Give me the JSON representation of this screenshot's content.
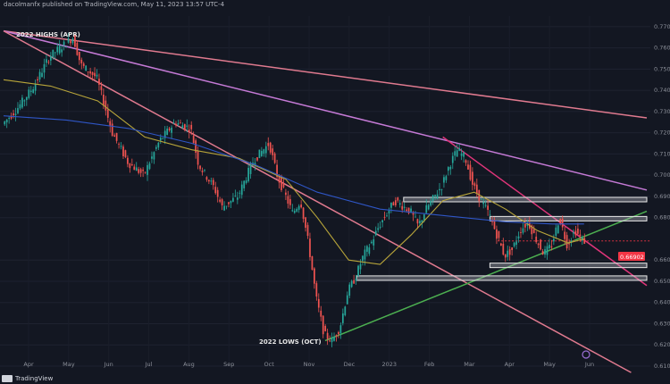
{
  "header_text": "dacolmanfx published on TradingView.com, May 11, 2023 13:57 UTC-4",
  "footer_brand": "TradingView",
  "colors": {
    "background": "#131722",
    "up": "#26a69a",
    "down": "#ef5350",
    "ma_fast": "#b8a53a",
    "ma_slow": "#2f56c6",
    "trend_pink": "#e07a8f",
    "trend_violet": "#c57ad6",
    "trend_magenta": "#e0357a",
    "trend_green": "#4caf50",
    "price_label": "#f23645"
  },
  "chart_data": {
    "type": "candlestick",
    "title": "",
    "ylabel": "",
    "ylim": [
      0.61,
      0.775
    ],
    "y_ticks": [
      "0.77000",
      "0.76000",
      "0.75000",
      "0.74000",
      "0.73000",
      "0.72000",
      "0.71000",
      "0.70000",
      "0.69000",
      "0.68000",
      "0.66000",
      "0.65000",
      "0.64000",
      "0.63000",
      "0.62000",
      "0.61000"
    ],
    "x_ticks": [
      "Apr",
      "May",
      "Jun",
      "Jul",
      "Aug",
      "Sep",
      "Oct",
      "Nov",
      "Dec",
      "2023",
      "Feb",
      "Mar",
      "Apr",
      "May",
      "Jun"
    ],
    "current_price_label": "0.66902",
    "annotations": {
      "high": "2022 HIGHS (APR)",
      "low": "2022 LOWS (OCT)"
    },
    "price_path": [
      [
        0,
        0.724
      ],
      [
        2,
        0.732
      ],
      [
        4,
        0.742
      ],
      [
        6,
        0.756
      ],
      [
        8,
        0.762
      ],
      [
        9,
        0.765
      ],
      [
        10,
        0.752
      ],
      [
        12,
        0.746
      ],
      [
        14,
        0.72
      ],
      [
        16,
        0.706
      ],
      [
        18,
        0.7
      ],
      [
        19,
        0.708
      ],
      [
        20,
        0.716
      ],
      [
        22,
        0.725
      ],
      [
        24,
        0.722
      ],
      [
        25,
        0.705
      ],
      [
        27,
        0.694
      ],
      [
        28,
        0.685
      ],
      [
        30,
        0.69
      ],
      [
        32,
        0.707
      ],
      [
        34,
        0.715
      ],
      [
        35,
        0.7
      ],
      [
        37,
        0.682
      ],
      [
        38,
        0.688
      ],
      [
        39,
        0.668
      ],
      [
        40,
        0.642
      ],
      [
        41,
        0.625
      ],
      [
        42,
        0.622
      ],
      [
        43,
        0.628
      ],
      [
        44,
        0.645
      ],
      [
        45,
        0.652
      ],
      [
        46,
        0.662
      ],
      [
        47,
        0.668
      ],
      [
        48,
        0.676
      ],
      [
        50,
        0.688
      ],
      [
        52,
        0.683
      ],
      [
        53,
        0.676
      ],
      [
        54,
        0.684
      ],
      [
        56,
        0.695
      ],
      [
        57,
        0.705
      ],
      [
        58,
        0.712
      ],
      [
        59,
        0.708
      ],
      [
        60,
        0.695
      ],
      [
        61,
        0.688
      ],
      [
        62,
        0.682
      ],
      [
        63,
        0.672
      ],
      [
        64,
        0.662
      ],
      [
        65,
        0.665
      ],
      [
        66,
        0.674
      ],
      [
        67,
        0.678
      ],
      [
        68,
        0.67
      ],
      [
        69,
        0.663
      ],
      [
        70,
        0.667
      ],
      [
        71,
        0.68
      ],
      [
        72,
        0.667
      ],
      [
        73,
        0.674
      ],
      [
        74,
        0.669
      ]
    ],
    "ma_fast": [
      [
        0,
        0.745
      ],
      [
        6,
        0.742
      ],
      [
        12,
        0.735
      ],
      [
        18,
        0.718
      ],
      [
        24,
        0.712
      ],
      [
        30,
        0.708
      ],
      [
        36,
        0.698
      ],
      [
        40,
        0.68
      ],
      [
        44,
        0.66
      ],
      [
        48,
        0.658
      ],
      [
        52,
        0.672
      ],
      [
        56,
        0.688
      ],
      [
        60,
        0.692
      ],
      [
        64,
        0.684
      ],
      [
        68,
        0.674
      ],
      [
        72,
        0.668
      ],
      [
        74,
        0.67
      ]
    ],
    "ma_slow": [
      [
        0,
        0.728
      ],
      [
        8,
        0.726
      ],
      [
        16,
        0.722
      ],
      [
        24,
        0.715
      ],
      [
        32,
        0.705
      ],
      [
        40,
        0.692
      ],
      [
        48,
        0.684
      ],
      [
        56,
        0.681
      ],
      [
        64,
        0.678
      ],
      [
        70,
        0.677
      ],
      [
        74,
        0.677
      ]
    ],
    "horizontal_zones": [
      {
        "from": 51,
        "to": 82,
        "price": 0.6885
      },
      {
        "from": 62,
        "to": 82,
        "price": 0.6795
      },
      {
        "from": 62,
        "to": 82,
        "price": 0.6575
      },
      {
        "from": 45,
        "to": 82,
        "price": 0.6515
      }
    ]
  }
}
